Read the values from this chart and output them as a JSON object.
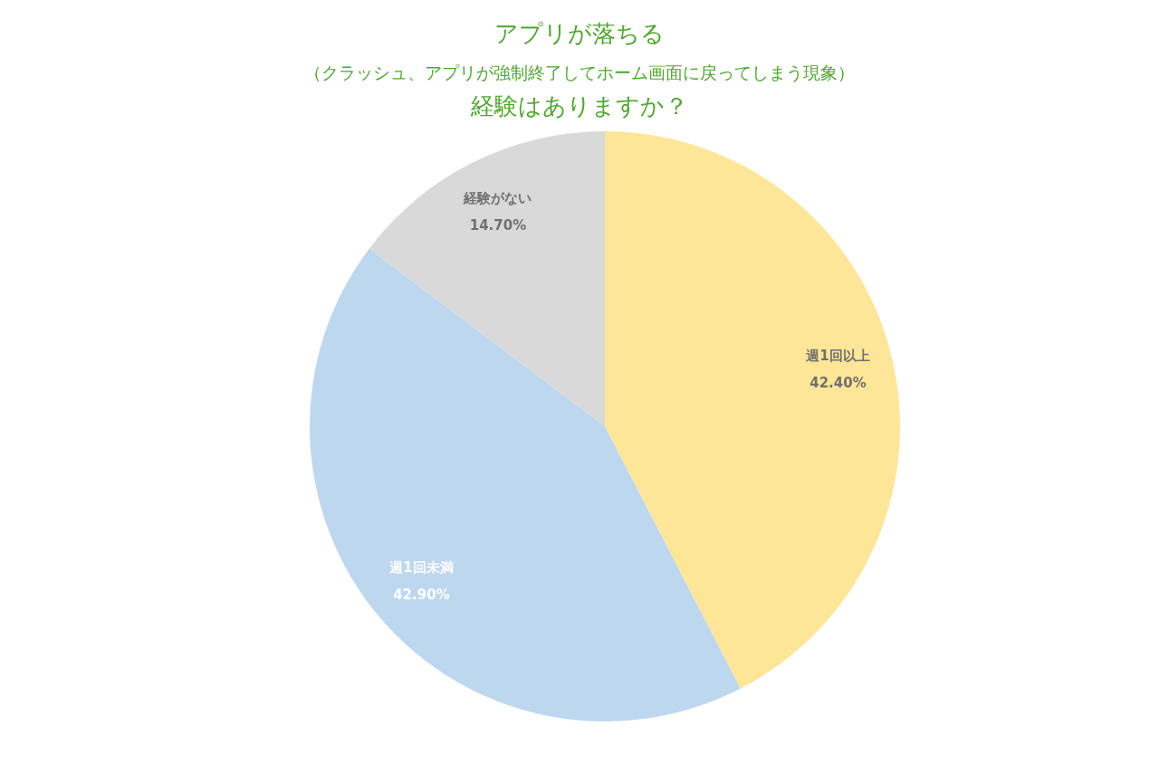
{
  "chart_data": {
    "type": "pie",
    "title": "アプリが落ちる",
    "subtitle": "（クラッシュ、アプリが強制終了してホーム画面に戻ってしまう現象）",
    "annotations": [
      "経験はありますか？"
    ],
    "categories": [
      "週1回以上",
      "週1回未満",
      "経験がない"
    ],
    "values": [
      42.4,
      42.9,
      14.7
    ],
    "value_labels": [
      "42.40%",
      "42.90%",
      "14.70%"
    ],
    "colors": [
      "#fee699",
      "#bdd7ee",
      "#d9d9d9"
    ],
    "legend": false
  }
}
